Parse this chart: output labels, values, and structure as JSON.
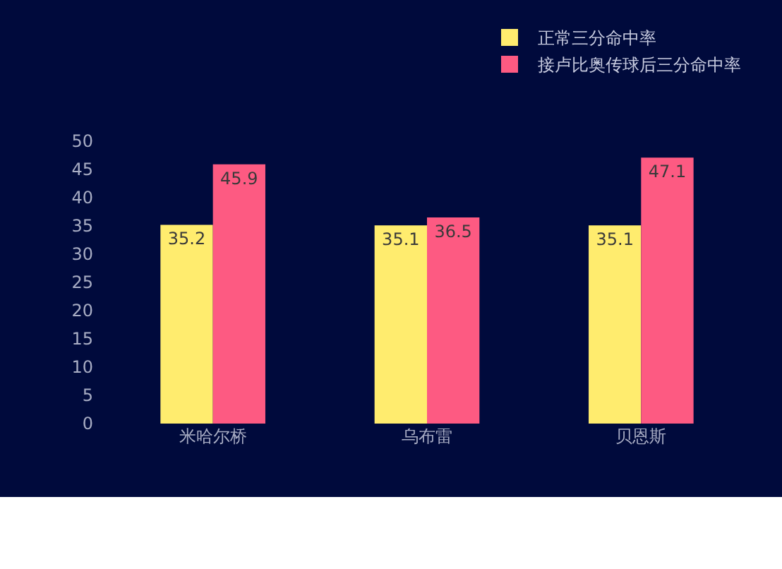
{
  "chart_data": {
    "type": "bar",
    "categories": [
      "米哈尔桥",
      "乌布雷",
      "贝恩斯"
    ],
    "series": [
      {
        "name": "正常三分命中率",
        "color": "#ffec6e",
        "values": [
          35.2,
          35.1,
          35.1
        ]
      },
      {
        "name": "接卢比奥传球后三分命中率",
        "color": "#fd5a82",
        "values": [
          45.9,
          36.5,
          47.1
        ]
      }
    ],
    "ylim": [
      0,
      50
    ],
    "yticks": [
      0,
      5,
      10,
      15,
      20,
      25,
      30,
      35,
      40,
      45,
      50
    ],
    "grid": false,
    "legend": "top right",
    "data_labels": true
  }
}
